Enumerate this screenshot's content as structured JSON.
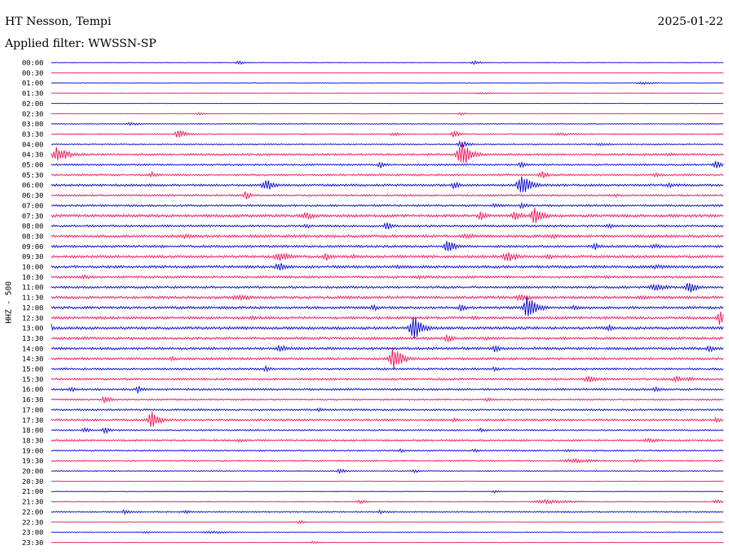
{
  "header": {
    "station": "HT Nesson, Tempi",
    "date": "2025-01-22",
    "filter": "Applied filter: WWSSN-SP"
  },
  "chart_data": {
    "type": "line",
    "ylabel": "HHZ - 500",
    "colors": {
      "even_rows": "#0000cc",
      "odd_rows": "#ee1155"
    },
    "rows": [
      {
        "label": "00:00",
        "noise": 0.5,
        "events": [
          {
            "t": 0.28,
            "amp": 3,
            "w": 0.01
          },
          {
            "t": 0.63,
            "amp": 3,
            "w": 0.01
          }
        ]
      },
      {
        "label": "00:30",
        "noise": 0.3,
        "events": []
      },
      {
        "label": "01:00",
        "noise": 0.5,
        "events": [
          {
            "t": 0.88,
            "amp": 2,
            "w": 0.02
          }
        ]
      },
      {
        "label": "01:30",
        "noise": 0.5,
        "events": [
          {
            "t": 0.64,
            "amp": 1.5,
            "w": 0.02
          }
        ]
      },
      {
        "label": "02:00",
        "noise": 0.3,
        "events": []
      },
      {
        "label": "02:30",
        "noise": 0.5,
        "events": [
          {
            "t": 0.22,
            "amp": 2,
            "w": 0.01
          },
          {
            "t": 0.61,
            "amp": 2,
            "w": 0.01
          }
        ]
      },
      {
        "label": "03:00",
        "noise": 0.7,
        "events": [
          {
            "t": 0.12,
            "amp": 2,
            "w": 0.02
          }
        ]
      },
      {
        "label": "03:30",
        "noise": 0.8,
        "events": [
          {
            "t": 0.19,
            "amp": 7,
            "w": 0.01
          },
          {
            "t": 0.51,
            "amp": 3,
            "w": 0.01
          },
          {
            "t": 0.6,
            "amp": 5,
            "w": 0.01
          },
          {
            "t": 0.76,
            "amp": 2,
            "w": 0.03
          }
        ]
      },
      {
        "label": "04:00",
        "noise": 0.9,
        "events": [
          {
            "t": 0.61,
            "amp": 6,
            "w": 0.01
          },
          {
            "t": 0.82,
            "amp": 2,
            "w": 0.02
          }
        ]
      },
      {
        "label": "04:30",
        "noise": 1.4,
        "events": [
          {
            "t": 0.01,
            "amp": 12,
            "w": 0.015
          },
          {
            "t": 0.61,
            "amp": 22,
            "w": 0.012
          },
          {
            "t": 0.92,
            "amp": 3,
            "w": 0.01
          }
        ]
      },
      {
        "label": "05:00",
        "noise": 1.2,
        "events": [
          {
            "t": 0.49,
            "amp": 5,
            "w": 0.008
          },
          {
            "t": 0.7,
            "amp": 4,
            "w": 0.01
          },
          {
            "t": 0.99,
            "amp": 7,
            "w": 0.008
          }
        ]
      },
      {
        "label": "05:30",
        "noise": 1.3,
        "events": [
          {
            "t": 0.15,
            "amp": 4,
            "w": 0.01
          },
          {
            "t": 0.73,
            "amp": 6,
            "w": 0.01
          },
          {
            "t": 0.9,
            "amp": 3,
            "w": 0.01
          }
        ]
      },
      {
        "label": "06:00",
        "noise": 1.6,
        "events": [
          {
            "t": 0.32,
            "amp": 9,
            "w": 0.012
          },
          {
            "t": 0.6,
            "amp": 6,
            "w": 0.008
          },
          {
            "t": 0.7,
            "amp": 16,
            "w": 0.012
          },
          {
            "t": 0.92,
            "amp": 4,
            "w": 0.008
          }
        ]
      },
      {
        "label": "06:30",
        "noise": 1.3,
        "events": [
          {
            "t": 0.29,
            "amp": 6,
            "w": 0.008
          },
          {
            "t": 0.84,
            "amp": 3,
            "w": 0.008
          }
        ]
      },
      {
        "label": "07:00",
        "noise": 1.4,
        "events": [
          {
            "t": 0.66,
            "amp": 4,
            "w": 0.01
          },
          {
            "t": 0.7,
            "amp": 5,
            "w": 0.008
          }
        ]
      },
      {
        "label": "07:30",
        "noise": 2.0,
        "events": [
          {
            "t": 0.38,
            "amp": 5,
            "w": 0.02
          },
          {
            "t": 0.64,
            "amp": 7,
            "w": 0.01
          },
          {
            "t": 0.69,
            "amp": 10,
            "w": 0.008
          },
          {
            "t": 0.72,
            "amp": 12,
            "w": 0.012
          }
        ]
      },
      {
        "label": "08:00",
        "noise": 1.5,
        "events": [
          {
            "t": 0.38,
            "amp": 4,
            "w": 0.008
          },
          {
            "t": 0.5,
            "amp": 6,
            "w": 0.01
          },
          {
            "t": 0.83,
            "amp": 4,
            "w": 0.01
          }
        ]
      },
      {
        "label": "08:30",
        "noise": 1.9,
        "events": [
          {
            "t": 0.2,
            "amp": 3,
            "w": 0.03
          },
          {
            "t": 0.62,
            "amp": 4,
            "w": 0.02
          },
          {
            "t": 0.75,
            "amp": 3,
            "w": 0.03
          }
        ]
      },
      {
        "label": "09:00",
        "noise": 1.6,
        "events": [
          {
            "t": 0.59,
            "amp": 12,
            "w": 0.01
          },
          {
            "t": 0.81,
            "amp": 5,
            "w": 0.01
          },
          {
            "t": 0.9,
            "amp": 3,
            "w": 0.02
          }
        ]
      },
      {
        "label": "09:30",
        "noise": 1.8,
        "events": [
          {
            "t": 0.34,
            "amp": 7,
            "w": 0.015
          },
          {
            "t": 0.41,
            "amp": 6,
            "w": 0.01
          },
          {
            "t": 0.45,
            "amp": 4,
            "w": 0.01
          },
          {
            "t": 0.68,
            "amp": 8,
            "w": 0.015
          },
          {
            "t": 0.74,
            "amp": 4,
            "w": 0.01
          }
        ]
      },
      {
        "label": "10:00",
        "noise": 1.8,
        "events": [
          {
            "t": 0.34,
            "amp": 7,
            "w": 0.012
          },
          {
            "t": 0.52,
            "amp": 3,
            "w": 0.02
          },
          {
            "t": 0.9,
            "amp": 3,
            "w": 0.04
          }
        ]
      },
      {
        "label": "10:30",
        "noise": 1.6,
        "events": [
          {
            "t": 0.05,
            "amp": 3,
            "w": 0.02
          },
          {
            "t": 0.55,
            "amp": 3,
            "w": 0.02
          },
          {
            "t": 0.83,
            "amp": 2,
            "w": 0.03
          }
        ]
      },
      {
        "label": "11:00",
        "noise": 1.6,
        "events": [
          {
            "t": 0.9,
            "amp": 5,
            "w": 0.02
          },
          {
            "t": 0.95,
            "amp": 10,
            "w": 0.01
          }
        ]
      },
      {
        "label": "11:30",
        "noise": 1.9,
        "events": [
          {
            "t": 0.28,
            "amp": 4,
            "w": 0.03
          },
          {
            "t": 0.7,
            "amp": 5,
            "w": 0.02
          },
          {
            "t": 0.88,
            "amp": 3,
            "w": 0.03
          }
        ]
      },
      {
        "label": "12:00",
        "noise": 1.8,
        "events": [
          {
            "t": 0.48,
            "amp": 5,
            "w": 0.008
          },
          {
            "t": 0.61,
            "amp": 6,
            "w": 0.008
          },
          {
            "t": 0.71,
            "amp": 18,
            "w": 0.012
          },
          {
            "t": 0.78,
            "amp": 4,
            "w": 0.01
          }
        ]
      },
      {
        "label": "12:30",
        "noise": 1.8,
        "events": [
          {
            "t": 0.3,
            "amp": 3,
            "w": 0.01
          },
          {
            "t": 0.63,
            "amp": 3,
            "w": 0.01
          },
          {
            "t": 0.995,
            "amp": 12,
            "w": 0.008
          }
        ]
      },
      {
        "label": "13:00",
        "noise": 2.0,
        "events": [
          {
            "t": 0.0,
            "amp": 6,
            "w": 0.006
          },
          {
            "t": 0.54,
            "amp": 18,
            "w": 0.012
          },
          {
            "t": 0.83,
            "amp": 6,
            "w": 0.008
          }
        ]
      },
      {
        "label": "13:30",
        "noise": 1.8,
        "events": [
          {
            "t": 0.59,
            "amp": 7,
            "w": 0.008
          },
          {
            "t": 0.65,
            "amp": 3,
            "w": 0.02
          }
        ]
      },
      {
        "label": "14:00",
        "noise": 1.8,
        "events": [
          {
            "t": 0.34,
            "amp": 6,
            "w": 0.01
          },
          {
            "t": 0.66,
            "amp": 8,
            "w": 0.006
          },
          {
            "t": 0.98,
            "amp": 5,
            "w": 0.01
          }
        ]
      },
      {
        "label": "14:30",
        "noise": 1.6,
        "events": [
          {
            "t": 0.18,
            "amp": 4,
            "w": 0.008
          },
          {
            "t": 0.51,
            "amp": 18,
            "w": 0.012
          }
        ]
      },
      {
        "label": "15:00",
        "noise": 1.4,
        "events": [
          {
            "t": 0.32,
            "amp": 4,
            "w": 0.008
          },
          {
            "t": 0.66,
            "amp": 3,
            "w": 0.01
          }
        ]
      },
      {
        "label": "15:30",
        "noise": 1.5,
        "events": [
          {
            "t": 0.8,
            "amp": 5,
            "w": 0.015
          },
          {
            "t": 0.93,
            "amp": 5,
            "w": 0.01
          },
          {
            "t": 0.95,
            "amp": 4,
            "w": 0.008
          }
        ]
      },
      {
        "label": "16:00",
        "noise": 1.4,
        "events": [
          {
            "t": 0.03,
            "amp": 4,
            "w": 0.01
          },
          {
            "t": 0.13,
            "amp": 6,
            "w": 0.008
          },
          {
            "t": 0.9,
            "amp": 3,
            "w": 0.02
          }
        ]
      },
      {
        "label": "16:30",
        "noise": 1.2,
        "events": [
          {
            "t": 0.08,
            "amp": 6,
            "w": 0.008
          },
          {
            "t": 0.65,
            "amp": 3,
            "w": 0.01
          }
        ]
      },
      {
        "label": "17:00",
        "noise": 1.3,
        "events": [
          {
            "t": 0.4,
            "amp": 3,
            "w": 0.01
          }
        ]
      },
      {
        "label": "17:30",
        "noise": 1.5,
        "events": [
          {
            "t": 0.15,
            "amp": 13,
            "w": 0.01
          },
          {
            "t": 0.6,
            "amp": 3,
            "w": 0.01
          },
          {
            "t": 0.99,
            "amp": 4,
            "w": 0.008
          }
        ]
      },
      {
        "label": "18:00",
        "noise": 1.1,
        "events": [
          {
            "t": 0.05,
            "amp": 4,
            "w": 0.008
          },
          {
            "t": 0.08,
            "amp": 5,
            "w": 0.008
          },
          {
            "t": 0.64,
            "amp": 3,
            "w": 0.01
          }
        ]
      },
      {
        "label": "18:30",
        "noise": 1.3,
        "events": [
          {
            "t": 0.28,
            "amp": 3,
            "w": 0.01
          },
          {
            "t": 0.89,
            "amp": 3,
            "w": 0.02
          }
        ]
      },
      {
        "label": "19:00",
        "noise": 1.0,
        "events": [
          {
            "t": 0.52,
            "amp": 3,
            "w": 0.008
          },
          {
            "t": 0.63,
            "amp": 3,
            "w": 0.008
          },
          {
            "t": 0.77,
            "amp": 3,
            "w": 0.008
          }
        ]
      },
      {
        "label": "19:30",
        "noise": 1.0,
        "events": [
          {
            "t": 0.78,
            "amp": 3,
            "w": 0.04
          },
          {
            "t": 0.87,
            "amp": 2,
            "w": 0.02
          }
        ]
      },
      {
        "label": "20:00",
        "noise": 0.7,
        "events": [
          {
            "t": 0.43,
            "amp": 4,
            "w": 0.008
          },
          {
            "t": 0.54,
            "amp": 3,
            "w": 0.008
          }
        ]
      },
      {
        "label": "20:30",
        "noise": 0.4,
        "events": []
      },
      {
        "label": "21:00",
        "noise": 0.5,
        "events": [
          {
            "t": 0.66,
            "amp": 2,
            "w": 0.01
          }
        ]
      },
      {
        "label": "21:30",
        "noise": 0.7,
        "events": [
          {
            "t": 0.46,
            "amp": 3,
            "w": 0.01
          },
          {
            "t": 0.74,
            "amp": 3,
            "w": 0.04
          },
          {
            "t": 0.99,
            "amp": 3,
            "w": 0.01
          }
        ]
      },
      {
        "label": "22:00",
        "noise": 0.9,
        "events": [
          {
            "t": 0.11,
            "amp": 4,
            "w": 0.008
          },
          {
            "t": 0.2,
            "amp": 3,
            "w": 0.008
          },
          {
            "t": 0.49,
            "amp": 3,
            "w": 0.008
          }
        ]
      },
      {
        "label": "22:30",
        "noise": 0.4,
        "events": [
          {
            "t": 0.37,
            "amp": 3,
            "w": 0.008
          }
        ]
      },
      {
        "label": "23:00",
        "noise": 0.6,
        "events": [
          {
            "t": 0.14,
            "amp": 2,
            "w": 0.01
          },
          {
            "t": 0.24,
            "amp": 2,
            "w": 0.03
          }
        ]
      },
      {
        "label": "23:30",
        "noise": 0.4,
        "events": [
          {
            "t": 0.39,
            "amp": 2,
            "w": 0.01
          }
        ]
      }
    ]
  }
}
